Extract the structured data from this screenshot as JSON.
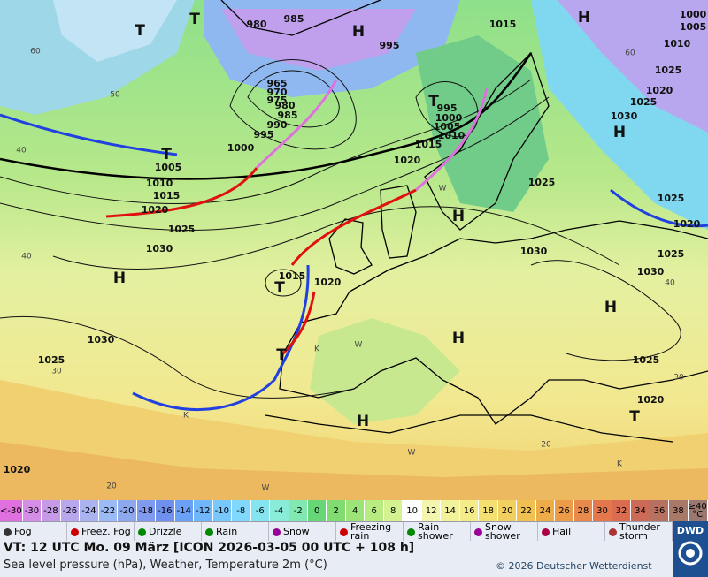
{
  "map": {
    "pressure_labels": [
      "980",
      "985",
      "995",
      "1015",
      "965",
      "970",
      "975",
      "980",
      "985",
      "990",
      "995",
      "1000",
      "1005",
      "1010",
      "1015",
      "1020",
      "1025",
      "1030",
      "995",
      "1000",
      "1005",
      "1010",
      "1015",
      "1020",
      "1025",
      "1030",
      "1015",
      "1020",
      "1030",
      "1025",
      "1020",
      "1000",
      "1005",
      "1010",
      "1025",
      "1020",
      "1025",
      "1030",
      "1025",
      "1020",
      "1025",
      "1030",
      "1025",
      "1020"
    ],
    "centers": [
      "T",
      "H",
      "H",
      "T",
      "T",
      "H",
      "T",
      "H",
      "H",
      "T",
      "H",
      "H",
      "T",
      "H",
      "T"
    ],
    "graticule_labels": [
      "60",
      "50",
      "40",
      "40",
      "30",
      "20",
      "60",
      "40",
      "30",
      "20",
      "W",
      "K",
      "W",
      "K",
      "W",
      "W",
      "K"
    ]
  },
  "temperature_scale": {
    "labels": [
      "<-30",
      "-30",
      "-28",
      "-26",
      "-24",
      "-22",
      "-20",
      "-18",
      "-16",
      "-14",
      "-12",
      "-10",
      "-8",
      "-6",
      "-4",
      "-2",
      "0",
      "2",
      "4",
      "6",
      "8",
      "10",
      "12",
      "14",
      "16",
      "18",
      "20",
      "22",
      "24",
      "26",
      "28",
      "30",
      "32",
      "34",
      "36",
      "38",
      "≥40 °C"
    ],
    "colors": [
      "#e070e0",
      "#d58ee8",
      "#c79ae8",
      "#b9a6ec",
      "#aab2f0",
      "#9cbaf4",
      "#8ea8f0",
      "#7f9aee",
      "#7090f0",
      "#6aa0f6",
      "#70b6fa",
      "#78c8fc",
      "#80d8fc",
      "#84e4f0",
      "#88ecd8",
      "#80e8b0",
      "#66d676",
      "#80dc70",
      "#9ce478",
      "#b8ec80",
      "#d4f290",
      "#ffffff",
      "#f4f6b0",
      "#f2f29a",
      "#f4ec88",
      "#f4e070",
      "#f2d060",
      "#f0c050",
      "#eeac48",
      "#ec9c48",
      "#e88a4c",
      "#e4784c",
      "#dc6c50",
      "#cc6a58",
      "#b87060",
      "#a87868",
      "#9a7870"
    ]
  },
  "weather_legend": [
    "Fog",
    "Freez. Fog",
    "Drizzle",
    "Rain",
    "Snow",
    "Freezing rain",
    "Rain shower",
    "Snow shower",
    "Hail",
    "Thunder storm"
  ],
  "footer": {
    "valid_time": "VT: 12 UTC Mo.  09 März [ICON 2026-03-05  00 UTC + 108 h]",
    "description": "Sea level pressure (hPa), Weather, Temperature 2m (°C)",
    "copyright": "© 2026 Deutscher Wetterdienst",
    "logo": "DWD"
  }
}
